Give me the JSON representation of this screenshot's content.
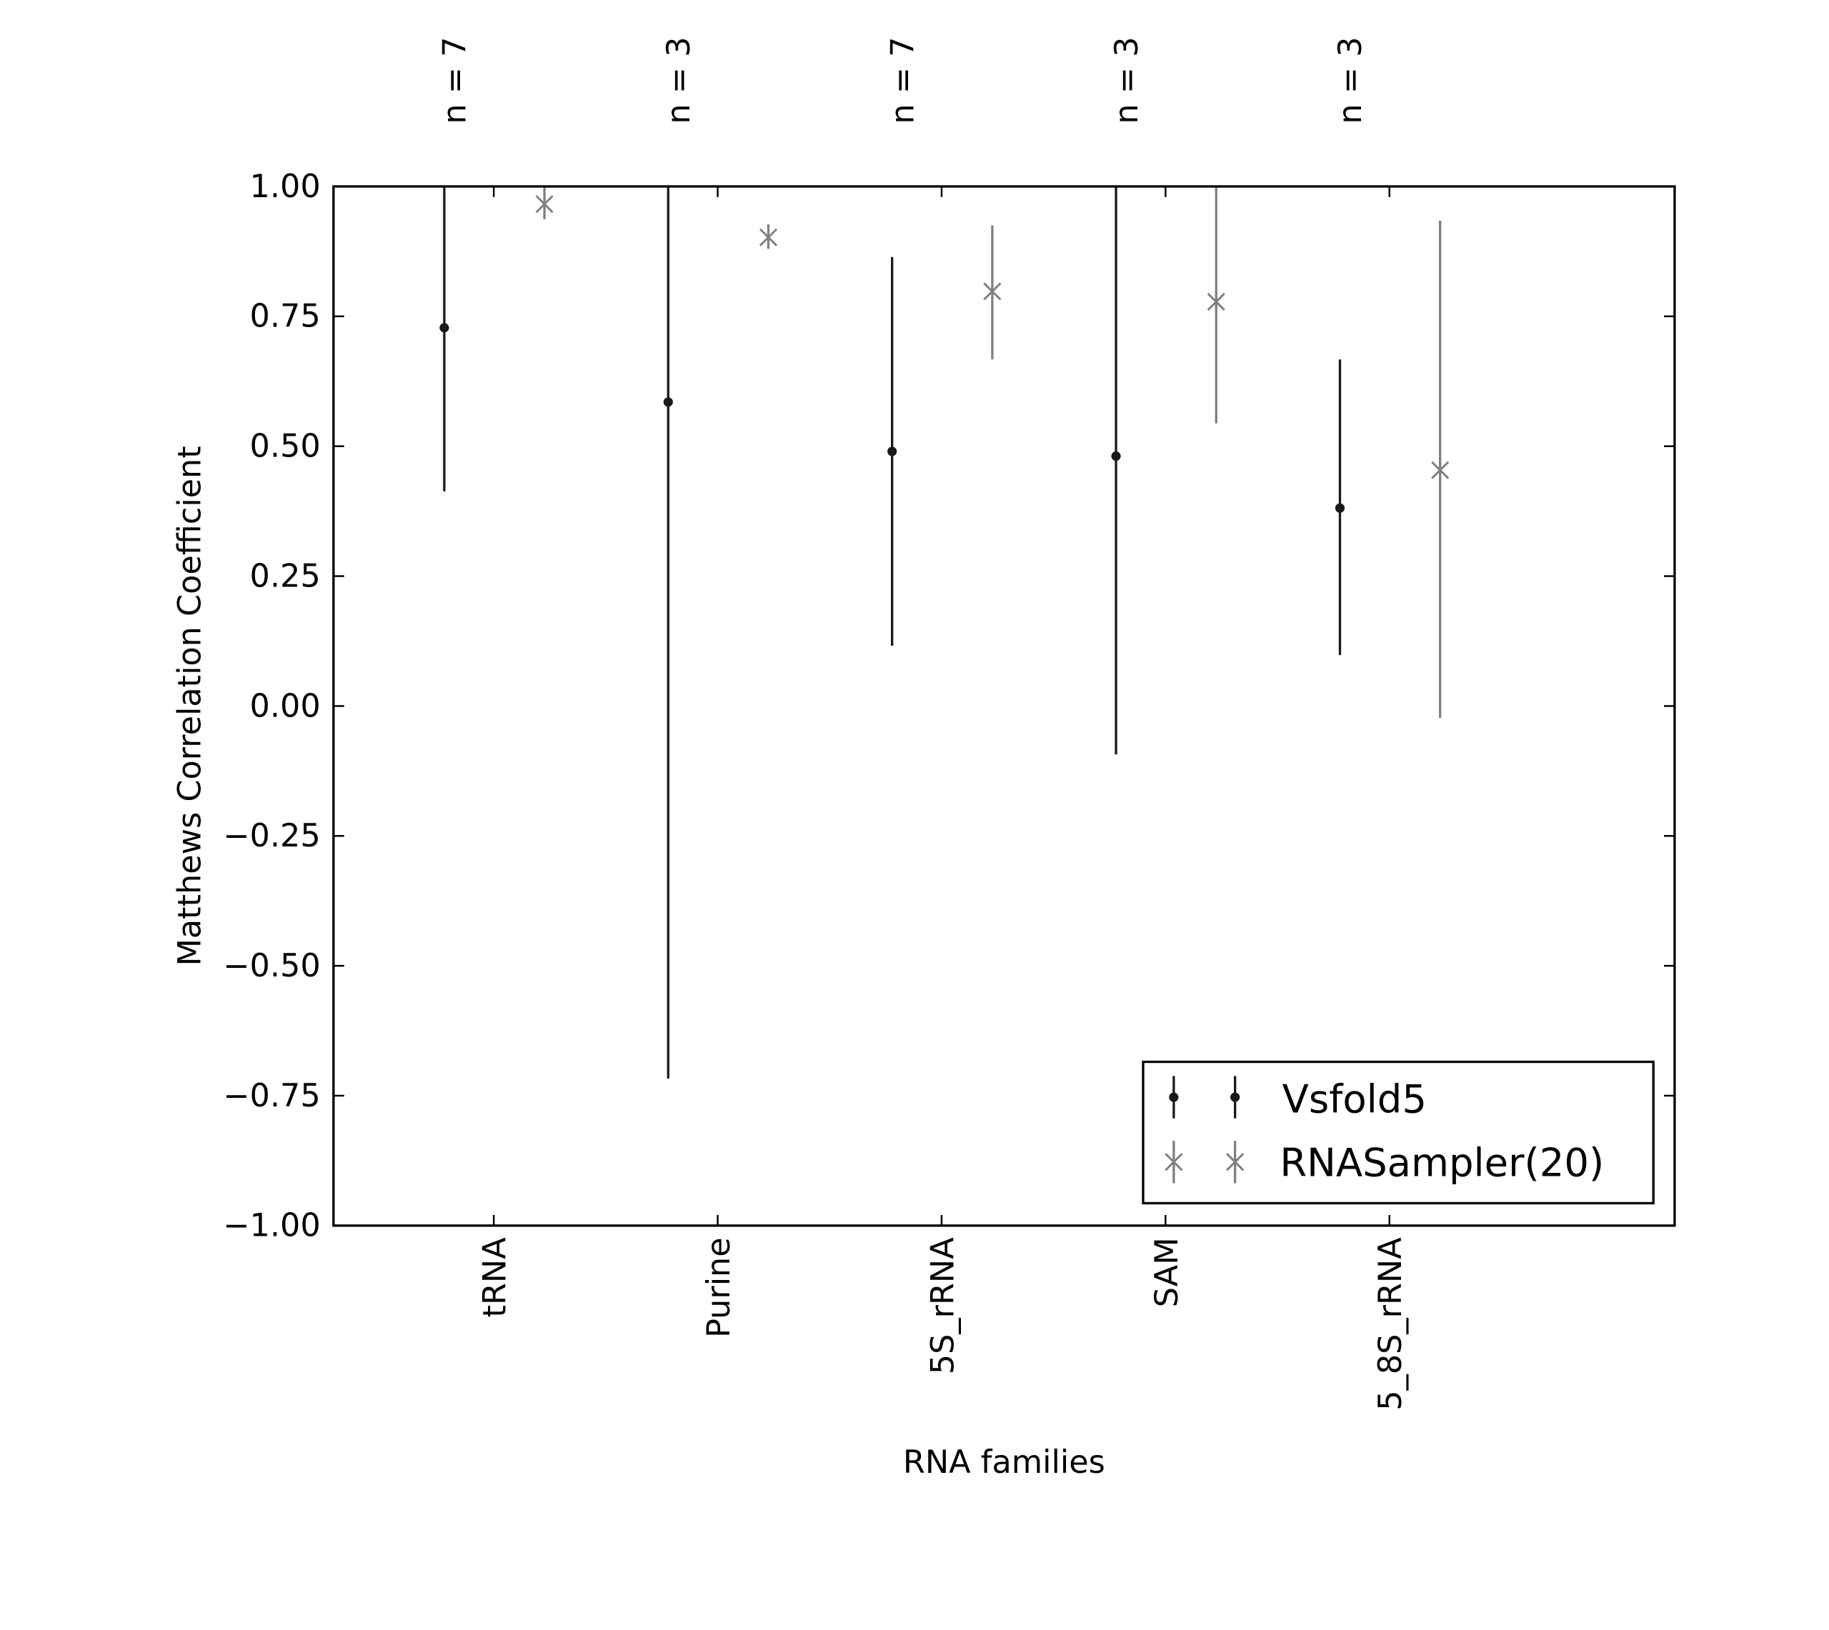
{
  "chart_data": {
    "type": "errorbar",
    "title": "",
    "xlabel": "RNA families",
    "ylabel": "Matthews Correlation Coefficient",
    "ylim": [
      -1.0,
      1.0
    ],
    "yticks": [
      "1.00",
      "0.75",
      "0.50",
      "0.25",
      "0.00",
      "−0.25",
      "−0.50",
      "−0.75",
      "−1.00"
    ],
    "ytick_values": [
      1.0,
      0.75,
      0.5,
      0.25,
      0.0,
      -0.25,
      -0.5,
      -0.75,
      -1.0
    ],
    "categories": [
      "tRNA",
      "Purine",
      "5S_rRNA",
      "SAM",
      "5_8S_rRNA"
    ],
    "top_annotations": [
      "n = 7",
      "n = 3",
      "n = 7",
      "n = 3",
      "n = 3"
    ],
    "grid": false,
    "legend_position": "lower-right",
    "series": [
      {
        "name": "Vsfold5",
        "color": "#1a1a1a",
        "marker": "dot",
        "values": [
          0.728,
          0.585,
          0.49,
          0.481,
          0.381
        ],
        "lower": [
          0.413,
          -0.717,
          0.116,
          -0.093,
          0.098
        ],
        "upper": [
          1.0,
          1.0,
          0.864,
          1.0,
          0.667
        ]
      },
      {
        "name": "RNASampler(20)",
        "color": "#808080",
        "marker": "x",
        "values": [
          0.966,
          0.902,
          0.798,
          0.778,
          0.454
        ],
        "lower": [
          0.937,
          0.88,
          0.667,
          0.544,
          -0.023
        ],
        "upper": [
          1.0,
          0.927,
          0.925,
          1.0,
          0.934
        ]
      }
    ]
  }
}
